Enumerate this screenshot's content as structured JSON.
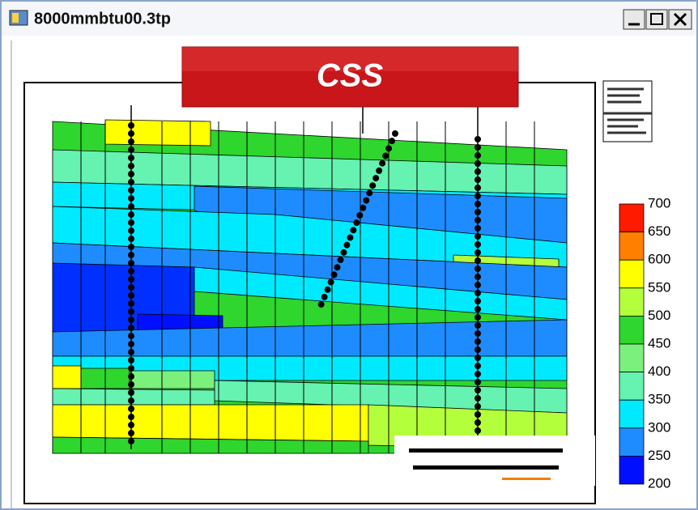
{
  "window": {
    "title": "8000mmbtu00.3tp"
  },
  "banner": {
    "text": "CSS"
  },
  "legend": {
    "labels": [
      "700",
      "650",
      "600",
      "550",
      "500",
      "450",
      "400",
      "350",
      "300",
      "250",
      "200"
    ],
    "colors": [
      "#ff1a00",
      "#ff7f00",
      "#ffff00",
      "#b4ff3c",
      "#2ed62e",
      "#7cf07c",
      "#66f2b0",
      "#00eaff",
      "#1e8cff",
      "#0010ff"
    ]
  }
}
